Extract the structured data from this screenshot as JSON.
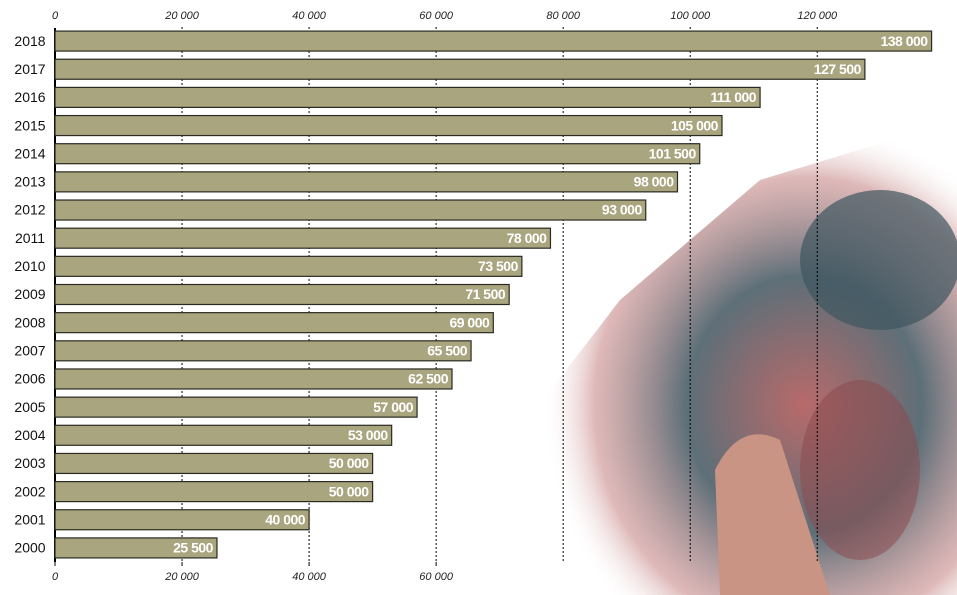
{
  "chart_data": {
    "type": "bar",
    "orientation": "horizontal",
    "categories": [
      "2018",
      "2017",
      "2016",
      "2015",
      "2014",
      "2013",
      "2012",
      "2011",
      "2010",
      "2009",
      "2008",
      "2007",
      "2006",
      "2005",
      "2004",
      "2003",
      "2002",
      "2001",
      "2000"
    ],
    "values": [
      138000,
      127500,
      111000,
      105000,
      101500,
      98000,
      93000,
      78000,
      73500,
      71500,
      69000,
      65500,
      62500,
      57000,
      53000,
      50000,
      50000,
      40000,
      25500
    ],
    "value_labels": [
      "138 000",
      "127 500",
      "111 000",
      "105 000",
      "101 500",
      "98 000",
      "93 000",
      "78 000",
      "73 500",
      "71 500",
      "69 000",
      "65 500",
      "62 500",
      "57 000",
      "53 000",
      "50 000",
      "50 000",
      "40 000",
      "25 500"
    ],
    "color": "#a9a57f",
    "xlim": [
      0,
      142000
    ],
    "xticks": [
      0,
      {
        "value": 20000,
        "label": "20 000"
      },
      {
        "value": 40000,
        "label": "40 000"
      },
      {
        "value": 60000,
        "label": "60 000"
      },
      {
        "value": 80000,
        "label": "80 000"
      },
      {
        "value": 100000,
        "label": "100 000"
      },
      {
        "value": 120000,
        "label": "120 000"
      }
    ],
    "xticks_bottom": [
      0,
      {
        "value": 20000,
        "label": "20 000"
      },
      {
        "value": 40000,
        "label": "40 000"
      },
      {
        "value": 60000,
        "label": "60 000"
      }
    ],
    "grid": true
  }
}
